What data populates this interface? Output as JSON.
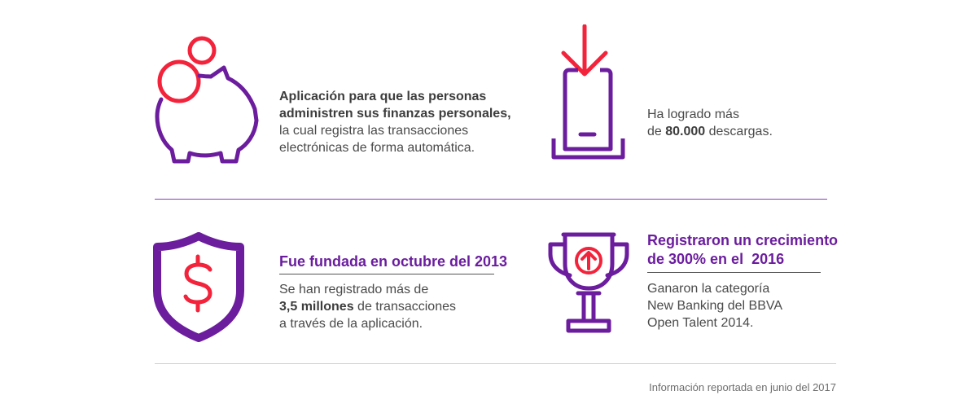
{
  "colors": {
    "purple": "#6b1d9e",
    "red": "#f2233b",
    "text": "#4a4a4a"
  },
  "blocks": {
    "app": {
      "icon": "piggy-bank-coins-icon",
      "line1": "Aplicación para que las personas",
      "line2": "administren sus finanzas personales,",
      "line3": "la cual registra las transacciones",
      "line4": "electrónicas de forma automática."
    },
    "downloads": {
      "icon": "phone-download-icon",
      "line1": "Ha logrado más",
      "line2_prefix": "de ",
      "line2_bold": "80.000",
      "line2_suffix": " descargas."
    },
    "founded": {
      "icon": "shield-dollar-icon",
      "title": "Fue fundada en octubre del 2013",
      "line1": "Se han registrado más de",
      "line2_bold": "3,5 millones",
      "line2_suffix": " de transacciones",
      "line3": "a través de la aplicación."
    },
    "growth": {
      "icon": "trophy-arrow-icon",
      "title_line1": "Registraron un crecimiento",
      "title_line2": "de 300% en el  2016",
      "line1": "Ganaron la categoría",
      "line2": "New Banking del BBVA",
      "line3": "Open Talent 2014."
    }
  },
  "footnote": "Información reportada en junio del 2017"
}
